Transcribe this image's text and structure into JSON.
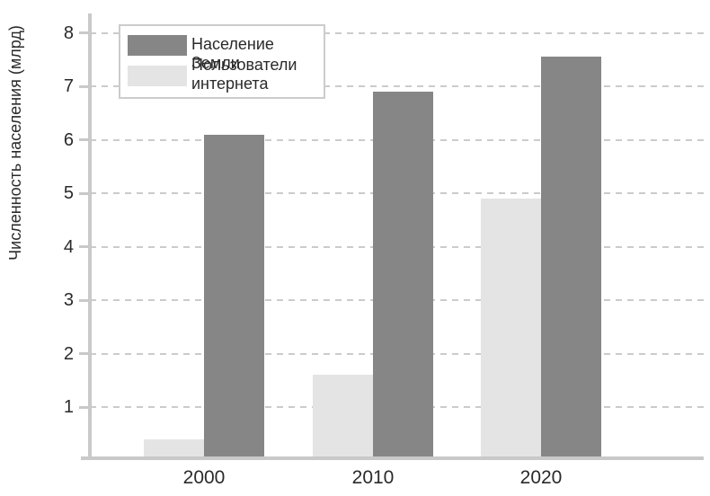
{
  "chart_data": {
    "type": "bar",
    "title": "",
    "categories": [
      "2000",
      "2010",
      "2020"
    ],
    "series": [
      {
        "key": "population",
        "name": "Население Земли",
        "color": "#868686",
        "values": [
          6.1,
          6.9,
          7.55
        ]
      },
      {
        "key": "internet-users",
        "name": "Пользователи интернета",
        "color": "#e4e4e4",
        "values": [
          0.4,
          1.6,
          4.9
        ]
      }
    ],
    "bar_group_order_left_to_right": [
      "Пользователи интернета",
      "Население Земли"
    ],
    "xlabel": "",
    "ylabel": "Численность населения (млрд)",
    "yticks": [
      1,
      2,
      3,
      4,
      5,
      6,
      7,
      8
    ],
    "ylim": [
      0,
      8.36
    ],
    "grid": "horizontal-dashed",
    "legend_position": "top-left",
    "colors": {
      "axis": "#c9c9c9",
      "gridline": "#cbcbcb",
      "text": "#2a2a2a",
      "background": "#ffffff"
    }
  }
}
